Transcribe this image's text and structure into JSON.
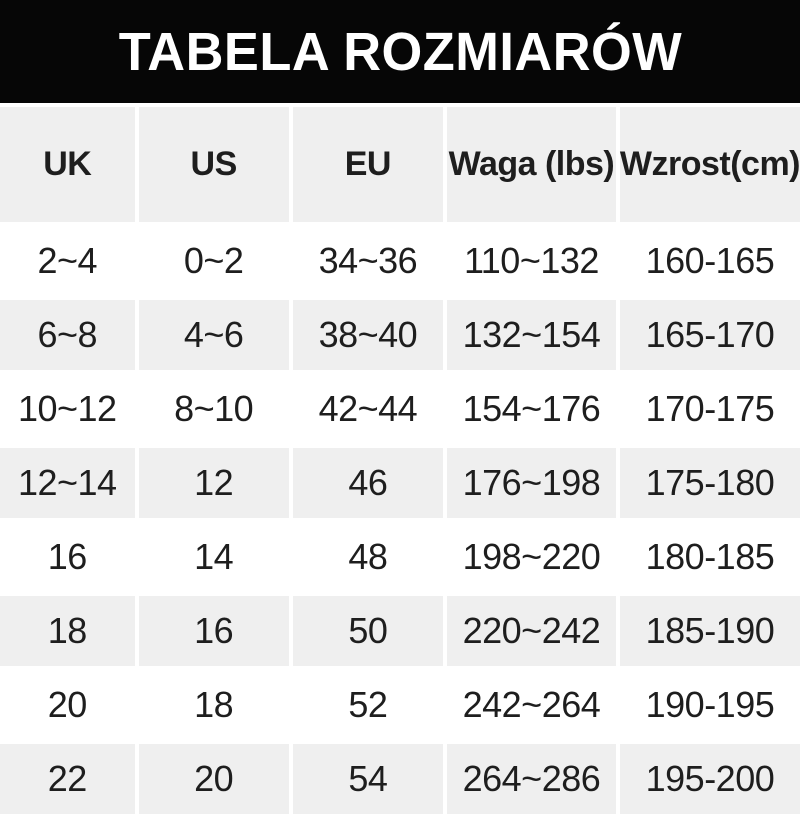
{
  "title": "TABELA ROZMIARÓW",
  "colors": {
    "title_bg": "#060606",
    "title_text": "#ffffff",
    "row_bg": "#ffffff",
    "row_alt_bg": "#efefef",
    "cell_text": "#1e1e1e"
  },
  "table": {
    "columns": [
      "UK",
      "US",
      "EU",
      "Waga (lbs)",
      "Wzrost(cm)"
    ],
    "rows": [
      [
        "2~4",
        "0~2",
        "34~36",
        "110~132",
        "160-165"
      ],
      [
        "6~8",
        "4~6",
        "38~40",
        "132~154",
        "165-170"
      ],
      [
        "10~12",
        "8~10",
        "42~44",
        "154~176",
        "170-175"
      ],
      [
        "12~14",
        "12",
        "46",
        "176~198",
        "175-180"
      ],
      [
        "16",
        "14",
        "48",
        "198~220",
        "180-185"
      ],
      [
        "18",
        "16",
        "50",
        "220~242",
        "185-190"
      ],
      [
        "20",
        "18",
        "52",
        "242~264",
        "190-195"
      ],
      [
        "22",
        "20",
        "54",
        "264~286",
        "195-200"
      ]
    ]
  }
}
